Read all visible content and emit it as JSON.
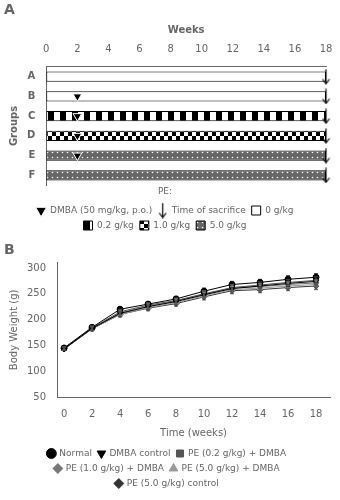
{
  "chart_data": [
    {
      "type": "bar",
      "orientation": "horizontal",
      "title": "A",
      "xlabel": "Weeks",
      "ylabel": "Groups",
      "categories": [
        "A",
        "B",
        "C",
        "D",
        "E",
        "F"
      ],
      "xlim": [
        0,
        18
      ],
      "xticks": [
        0,
        2,
        4,
        6,
        8,
        10,
        12,
        14,
        16,
        18
      ],
      "grid": false,
      "legend": "bottom",
      "annotations": [
        "PE:"
      ],
      "series": [
        {
          "name": "0 g/kg",
          "values": [
            [
              0,
              18
            ],
            [
              0,
              18
            ],
            null,
            null,
            null,
            null
          ]
        },
        {
          "name": "0.2 g/kg",
          "values": [
            null,
            null,
            [
              0,
              18
            ],
            null,
            null,
            null
          ]
        },
        {
          "name": "1.0 g/kg",
          "values": [
            null,
            null,
            null,
            [
              0,
              18
            ],
            null,
            null
          ]
        },
        {
          "name": "5.0 g/kg",
          "values": [
            null,
            null,
            null,
            null,
            [
              0,
              18
            ],
            [
              0,
              18
            ]
          ]
        },
        {
          "name": "DMBA (50 mg/kg, p.o.)",
          "type": "scatter",
          "marker": "triangle_down",
          "color": "#000000",
          "values": [
            null,
            2,
            2,
            2,
            2,
            null
          ]
        },
        {
          "name": "Time of sacrifice",
          "type": "scatter",
          "marker": "arrow_down",
          "color": "#000000",
          "values": [
            18,
            18,
            18,
            18,
            18,
            18
          ]
        }
      ]
    },
    {
      "type": "line",
      "title": "B",
      "xlabel": "Time (weeks)",
      "ylabel": "Body Weight (g)",
      "x": [
        0,
        2,
        4,
        6,
        8,
        10,
        12,
        14,
        16,
        18
      ],
      "xlim": [
        -0.5,
        19
      ],
      "xticks": [
        0,
        2,
        4,
        6,
        8,
        10,
        12,
        14,
        16,
        18
      ],
      "ylim": [
        50,
        310
      ],
      "yticks": [
        50,
        100,
        150,
        200,
        250,
        300
      ],
      "grid": false,
      "legend": "bottom",
      "series": [
        {
          "name": "Normal",
          "color": "#000000",
          "marker": "circle",
          "values": [
            145,
            185,
            220,
            230,
            240,
            255,
            268,
            272,
            278,
            282
          ],
          "errors": [
            3,
            4,
            5,
            5,
            5,
            6,
            6,
            6,
            7,
            7
          ]
        },
        {
          "name": "DMBA control",
          "color": "#000000",
          "marker": "triangle_down",
          "values": [
            143,
            183,
            212,
            225,
            235,
            248,
            260,
            265,
            270,
            274
          ],
          "errors": [
            3,
            4,
            5,
            5,
            5,
            6,
            6,
            6,
            6,
            7
          ]
        },
        {
          "name": "PE (0.2 g/kg) + DMBA",
          "color": "#555555",
          "marker": "square",
          "values": [
            144,
            184,
            215,
            228,
            237,
            250,
            262,
            267,
            272,
            276
          ],
          "errors": [
            3,
            4,
            5,
            5,
            5,
            6,
            6,
            6,
            6,
            7
          ]
        },
        {
          "name": "PE (1.0 g/kg) + DMBA",
          "color": "#777777",
          "marker": "diamond",
          "values": [
            144,
            183,
            213,
            226,
            236,
            249,
            261,
            264,
            268,
            271
          ],
          "errors": [
            3,
            4,
            5,
            5,
            5,
            6,
            6,
            6,
            6,
            7
          ]
        },
        {
          "name": "PE (5.0 g/kg) + DMBA",
          "color": "#999999",
          "marker": "triangle_up",
          "values": [
            143,
            182,
            210,
            223,
            233,
            246,
            258,
            261,
            265,
            268
          ],
          "errors": [
            3,
            4,
            5,
            5,
            5,
            6,
            6,
            6,
            6,
            7
          ]
        },
        {
          "name": "PE (5.0 g/kg) control",
          "color": "#333333",
          "marker": "diamond",
          "values": [
            143,
            182,
            210,
            222,
            231,
            244,
            256,
            258,
            262,
            265
          ],
          "errors": [
            3,
            4,
            5,
            5,
            5,
            6,
            6,
            6,
            6,
            7
          ]
        }
      ]
    }
  ]
}
